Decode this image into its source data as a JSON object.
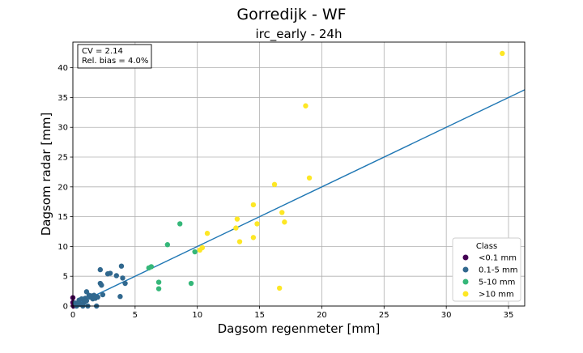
{
  "chart_data": {
    "type": "scatter",
    "suptitle": "Gorredijk - WF",
    "title": "irc_early - 24h",
    "xlabel": "Dagsom regenmeter [mm]",
    "ylabel": "Dagsom radar [mm]",
    "xlim": [
      0,
      36.3
    ],
    "ylim": [
      0,
      44.3
    ],
    "xticks": [
      0,
      5,
      10,
      15,
      20,
      25,
      30,
      35
    ],
    "yticks": [
      0,
      5,
      10,
      15,
      20,
      25,
      30,
      35,
      40
    ],
    "grid": true,
    "stats": {
      "cv": "CV = 2.14",
      "bias": "Rel. bias = 4.0%"
    },
    "fit_line": {
      "color": "#1f77b4",
      "slope": 1.0,
      "points": [
        [
          0,
          0
        ],
        [
          36.3,
          36.3
        ]
      ]
    },
    "legend": {
      "title": "Class",
      "position": "lower right"
    },
    "series": [
      {
        "name": "<0.1 mm",
        "color": "#440154",
        "points": [
          [
            0.0,
            1.4
          ],
          [
            0.05,
            0.2
          ],
          [
            0.05,
            0.0
          ],
          [
            0.0,
            0.6
          ]
        ]
      },
      {
        "name": "0.1-5 mm",
        "color": "#31688e",
        "points": [
          [
            0.2,
            0.5
          ],
          [
            0.3,
            0.0
          ],
          [
            0.4,
            0.2
          ],
          [
            0.5,
            1.0
          ],
          [
            0.6,
            0.3
          ],
          [
            0.7,
            1.2
          ],
          [
            0.8,
            0.0
          ],
          [
            0.9,
            0.6
          ],
          [
            1.0,
            1.3
          ],
          [
            1.1,
            0.9
          ],
          [
            1.1,
            2.4
          ],
          [
            1.2,
            0.0
          ],
          [
            1.3,
            1.8
          ],
          [
            1.4,
            1.5
          ],
          [
            1.5,
            1.7
          ],
          [
            1.6,
            1.2
          ],
          [
            1.7,
            1.8
          ],
          [
            1.8,
            1.3
          ],
          [
            1.9,
            0.0
          ],
          [
            2.0,
            1.5
          ],
          [
            2.2,
            6.1
          ],
          [
            2.2,
            3.8
          ],
          [
            2.3,
            3.5
          ],
          [
            2.4,
            1.9
          ],
          [
            2.8,
            5.4
          ],
          [
            3.0,
            5.5
          ],
          [
            3.5,
            5.1
          ],
          [
            3.8,
            1.6
          ],
          [
            3.9,
            6.7
          ],
          [
            4.0,
            4.7
          ],
          [
            4.2,
            3.8
          ]
        ]
      },
      {
        "name": "5-10 mm",
        "color": "#35b779",
        "points": [
          [
            6.1,
            6.4
          ],
          [
            6.3,
            6.6
          ],
          [
            6.9,
            4.0
          ],
          [
            6.9,
            2.9
          ],
          [
            7.6,
            10.3
          ],
          [
            8.6,
            13.8
          ],
          [
            9.5,
            3.8
          ],
          [
            9.8,
            9.1
          ]
        ]
      },
      {
        "name": ">10 mm",
        "color": "#fde725",
        "points": [
          [
            10.2,
            9.4
          ],
          [
            10.4,
            9.8
          ],
          [
            10.8,
            12.2
          ],
          [
            13.1,
            13.1
          ],
          [
            13.2,
            14.6
          ],
          [
            13.4,
            10.8
          ],
          [
            14.5,
            11.5
          ],
          [
            14.5,
            17.0
          ],
          [
            14.8,
            13.8
          ],
          [
            16.2,
            20.4
          ],
          [
            16.6,
            3.0
          ],
          [
            16.8,
            15.7
          ],
          [
            17.0,
            14.1
          ],
          [
            18.7,
            33.6
          ],
          [
            19.0,
            21.5
          ],
          [
            34.5,
            42.4
          ]
        ]
      }
    ]
  }
}
